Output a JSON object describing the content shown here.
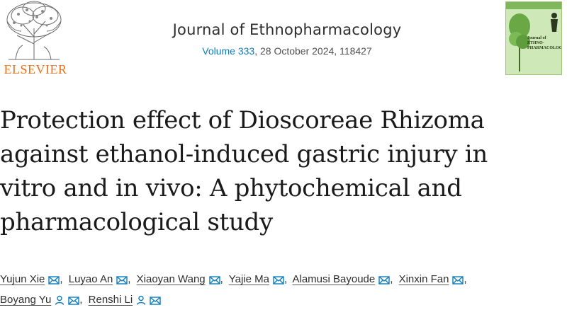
{
  "publisher": {
    "logo_text": "ELSEVIER"
  },
  "journal": {
    "name": "Journal of Ethnopharmacology",
    "volume_link": "Volume 333",
    "issue_info": ", 28 October 2024, 118427",
    "cover_label": "Journal of ETHNO-PHARMACOLOGY"
  },
  "article": {
    "title_lines": [
      "Protection effect of Dioscoreae Rhizoma",
      "against ethanol-induced gastric injury in",
      "vitro and in vivo: A phytochemical and",
      "pharmacological study"
    ]
  },
  "authors": [
    {
      "name": "Yujun Xie"
    },
    {
      "name": "Luyao An"
    },
    {
      "name": "Xiaoyan Wang"
    },
    {
      "name": "Yajie Ma"
    },
    {
      "name": "Alamusi Bayoude"
    },
    {
      "name": "Xinxin Fan"
    },
    {
      "name": "Boyang Yu"
    },
    {
      "name": "Renshi Li"
    }
  ],
  "separator": ",",
  "icons": {
    "mail": "mail-icon",
    "person": "person-icon"
  },
  "colors": {
    "link": "#0c7dbb",
    "elsevier_orange": "#e9711c",
    "icon_blue": "#0c7dbb"
  }
}
